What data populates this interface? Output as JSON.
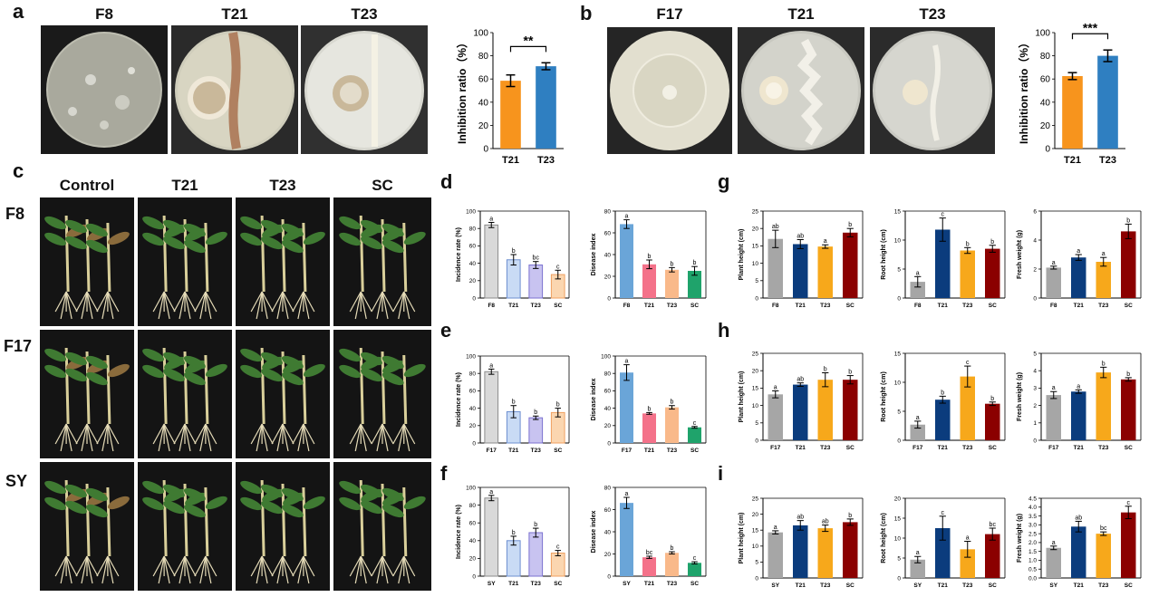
{
  "panels": {
    "a": {
      "letter": "a",
      "photo_labels": [
        "F8",
        "T21",
        "T23"
      ]
    },
    "b": {
      "letter": "b",
      "photo_labels": [
        "F17",
        "T21",
        "T23"
      ]
    },
    "c": {
      "letter": "c",
      "col_labels": [
        "Control",
        "T21",
        "T23",
        "SC"
      ],
      "row_labels": [
        "F8",
        "F17",
        "SY"
      ]
    },
    "d": {
      "letter": "d"
    },
    "e": {
      "letter": "e"
    },
    "f": {
      "letter": "f"
    },
    "g": {
      "letter": "g"
    },
    "h": {
      "letter": "h"
    },
    "i": {
      "letter": "i"
    }
  },
  "colors": {
    "orange": "#f7941d",
    "blue": "#2f7fc1",
    "gray": "#a6a6a6",
    "navy": "#0b3c7d",
    "amber": "#f7a81b",
    "maroon": "#8b0000",
    "pale_gray": "#d9d9d9",
    "pale_blue": "#c9dbf5",
    "pale_purple": "#c8c3f0",
    "pale_orange": "#fbd6b0",
    "di_blue": "#6aa5d8",
    "di_pink": "#f4728a",
    "di_peach": "#f9b98a",
    "di_green": "#1fa36b"
  },
  "chart_data": [
    {
      "id": "a",
      "type": "bar",
      "categories": [
        "T21",
        "T23"
      ],
      "values": [
        58.5,
        71.0
      ],
      "errors": [
        5,
        3
      ],
      "ylabel": "Inhibition ratio（%）",
      "ylim": [
        0,
        100
      ],
      "yticks": [
        0,
        20,
        40,
        60,
        80,
        100
      ],
      "significance": "**",
      "colors": [
        "#f7941d",
        "#2f7fc1"
      ]
    },
    {
      "id": "b",
      "type": "bar",
      "categories": [
        "T21",
        "T23"
      ],
      "values": [
        62.5,
        80.0
      ],
      "errors": [
        3,
        5
      ],
      "ylabel": "Inhibition ratio（%）",
      "ylim": [
        0,
        100
      ],
      "yticks": [
        0,
        20,
        40,
        60,
        80,
        100
      ],
      "significance": "***",
      "colors": [
        "#f7941d",
        "#2f7fc1"
      ]
    },
    {
      "id": "d1",
      "type": "bar",
      "categories": [
        "F8",
        "T21",
        "T23",
        "SC"
      ],
      "values": [
        84,
        44,
        38,
        27
      ],
      "errors": [
        3,
        6,
        4,
        5
      ],
      "letters": [
        "a",
        "b",
        "bc",
        "c"
      ],
      "ylabel": "Incidence rate (%)",
      "ylim": [
        0,
        100
      ],
      "yticks": [
        0,
        20,
        40,
        60,
        80,
        100
      ],
      "colors": [
        "#d9d9d9",
        "#c9dbf5",
        "#c8c3f0",
        "#fbd6b0"
      ],
      "edges": [
        "#8c8c8c",
        "#6d8fd0",
        "#7b72d0",
        "#f0a060"
      ]
    },
    {
      "id": "d2",
      "type": "bar",
      "categories": [
        "F8",
        "T21",
        "T23",
        "SC"
      ],
      "values": [
        68,
        31,
        26,
        25
      ],
      "errors": [
        4,
        4,
        2,
        4
      ],
      "letters": [
        "a",
        "b",
        "b",
        "b"
      ],
      "ylabel": "Disease index",
      "ylim": [
        0,
        80
      ],
      "yticks": [
        0,
        20,
        40,
        60,
        80
      ],
      "colors": [
        "#6aa5d8",
        "#f4728a",
        "#f9b98a",
        "#1fa36b"
      ]
    },
    {
      "id": "e1",
      "type": "bar",
      "categories": [
        "F17",
        "T21",
        "T23",
        "SC"
      ],
      "values": [
        82,
        36,
        29,
        35
      ],
      "errors": [
        3,
        7,
        2,
        5
      ],
      "letters": [
        "a",
        "b",
        "b",
        "b"
      ],
      "ylabel": "Incidence rate (%)",
      "ylim": [
        0,
        100
      ],
      "yticks": [
        0,
        20,
        40,
        60,
        80,
        100
      ],
      "colors": [
        "#d9d9d9",
        "#c9dbf5",
        "#c8c3f0",
        "#fbd6b0"
      ],
      "edges": [
        "#8c8c8c",
        "#6d8fd0",
        "#7b72d0",
        "#f0a060"
      ]
    },
    {
      "id": "e2",
      "type": "bar",
      "categories": [
        "F17",
        "T21",
        "T23",
        "SC"
      ],
      "values": [
        81,
        34,
        41,
        18
      ],
      "errors": [
        9,
        1,
        2,
        1
      ],
      "letters": [
        "a",
        "b",
        "b",
        "c"
      ],
      "ylabel": "Disease index",
      "ylim": [
        0,
        100
      ],
      "yticks": [
        0,
        20,
        40,
        60,
        80,
        100
      ],
      "colors": [
        "#6aa5d8",
        "#f4728a",
        "#f9b98a",
        "#1fa36b"
      ]
    },
    {
      "id": "f1",
      "type": "bar",
      "categories": [
        "SY",
        "T21",
        "T23",
        "SC"
      ],
      "values": [
        88,
        40,
        49,
        26
      ],
      "errors": [
        3,
        5,
        5,
        3
      ],
      "letters": [
        "a",
        "b",
        "b",
        "c"
      ],
      "ylabel": "Incidence rate (%)",
      "ylim": [
        0,
        100
      ],
      "yticks": [
        0,
        20,
        40,
        60,
        80,
        100
      ],
      "colors": [
        "#d9d9d9",
        "#c9dbf5",
        "#c8c3f0",
        "#fbd6b0"
      ],
      "edges": [
        "#8c8c8c",
        "#6d8fd0",
        "#7b72d0",
        "#f0a060"
      ]
    },
    {
      "id": "f2",
      "type": "bar",
      "categories": [
        "SY",
        "T21",
        "T23",
        "SC"
      ],
      "values": [
        66,
        17,
        21,
        12
      ],
      "errors": [
        5,
        1,
        1,
        1
      ],
      "letters": [
        "a",
        "bc",
        "b",
        "c"
      ],
      "ylabel": "Disease index",
      "ylim": [
        0,
        80
      ],
      "yticks": [
        0,
        20,
        40,
        60,
        80
      ],
      "colors": [
        "#6aa5d8",
        "#f4728a",
        "#f9b98a",
        "#1fa36b"
      ]
    },
    {
      "id": "g1",
      "type": "bar",
      "categories": [
        "F8",
        "T21",
        "T23",
        "SC"
      ],
      "values": [
        17,
        15.5,
        14.8,
        18.8
      ],
      "errors": [
        2.5,
        1.3,
        0.5,
        1.2
      ],
      "letters": [
        "ab",
        "ab",
        "a",
        "b"
      ],
      "ylabel": "Plant height (cm)",
      "ylim": [
        0,
        25
      ],
      "yticks": [
        0,
        5,
        10,
        15,
        20,
        25
      ],
      "colors": [
        "#a6a6a6",
        "#0b3c7d",
        "#f7a81b",
        "#8b0000"
      ]
    },
    {
      "id": "g2",
      "type": "bar",
      "categories": [
        "F8",
        "T21",
        "T23",
        "SC"
      ],
      "values": [
        2.8,
        11.8,
        8.2,
        8.5
      ],
      "errors": [
        0.9,
        2.0,
        0.5,
        0.6
      ],
      "letters": [
        "a",
        "c",
        "b",
        "b"
      ],
      "ylabel": "Root height (cm)",
      "ylim": [
        0,
        15
      ],
      "yticks": [
        0,
        5,
        10,
        15
      ],
      "colors": [
        "#a6a6a6",
        "#0b3c7d",
        "#f7a81b",
        "#8b0000"
      ]
    },
    {
      "id": "g3",
      "type": "bar",
      "categories": [
        "F8",
        "T21",
        "T23",
        "SC"
      ],
      "values": [
        2.1,
        2.8,
        2.5,
        4.6
      ],
      "errors": [
        0.1,
        0.2,
        0.3,
        0.5
      ],
      "letters": [
        "a",
        "a",
        "a",
        "b"
      ],
      "ylabel": "Fresh weight (g)",
      "ylim": [
        0,
        6
      ],
      "yticks": [
        0,
        2,
        4,
        6
      ],
      "colors": [
        "#a6a6a6",
        "#0b3c7d",
        "#f7a81b",
        "#8b0000"
      ]
    },
    {
      "id": "h1",
      "type": "bar",
      "categories": [
        "F17",
        "T21",
        "T23",
        "SC"
      ],
      "values": [
        13.2,
        16,
        17.4,
        17.4
      ],
      "errors": [
        1,
        0.5,
        2,
        1.2
      ],
      "letters": [
        "a",
        "ab",
        "b",
        "b"
      ],
      "ylabel": "Plant height (cm)",
      "ylim": [
        0,
        25
      ],
      "yticks": [
        0,
        5,
        10,
        15,
        20,
        25
      ],
      "colors": [
        "#a6a6a6",
        "#0b3c7d",
        "#f7a81b",
        "#8b0000"
      ]
    },
    {
      "id": "h2",
      "type": "bar",
      "categories": [
        "F17",
        "T21",
        "T23",
        "SC"
      ],
      "values": [
        2.7,
        7,
        11,
        6.3
      ],
      "errors": [
        0.6,
        0.6,
        1.8,
        0.3
      ],
      "letters": [
        "a",
        "b",
        "c",
        "b"
      ],
      "ylabel": "Root height (cm)",
      "ylim": [
        0,
        15
      ],
      "yticks": [
        0,
        5,
        10,
        15
      ],
      "colors": [
        "#a6a6a6",
        "#0b3c7d",
        "#f7a81b",
        "#8b0000"
      ]
    },
    {
      "id": "h3",
      "type": "bar",
      "categories": [
        "F17",
        "T21",
        "T23",
        "SC"
      ],
      "values": [
        2.6,
        2.8,
        3.9,
        3.5
      ],
      "errors": [
        0.2,
        0.1,
        0.3,
        0.1
      ],
      "letters": [
        "a",
        "a",
        "b",
        "b"
      ],
      "ylabel": "Fresh weight (g)",
      "ylim": [
        0,
        5
      ],
      "yticks": [
        0,
        1,
        2,
        3,
        4,
        5
      ],
      "colors": [
        "#a6a6a6",
        "#0b3c7d",
        "#f7a81b",
        "#8b0000"
      ]
    },
    {
      "id": "i1",
      "type": "bar",
      "categories": [
        "SY",
        "T21",
        "T23",
        "SC"
      ],
      "values": [
        14.3,
        16.5,
        15.6,
        17.5
      ],
      "errors": [
        0.5,
        1.5,
        1,
        1
      ],
      "letters": [
        "a",
        "ab",
        "ab",
        "b"
      ],
      "ylabel": "Plant height (cm)",
      "ylim": [
        0,
        25
      ],
      "yticks": [
        0,
        5,
        10,
        15,
        20,
        25
      ],
      "colors": [
        "#a6a6a6",
        "#0b3c7d",
        "#f7a81b",
        "#8b0000"
      ]
    },
    {
      "id": "i2",
      "type": "bar",
      "categories": [
        "SY",
        "T21",
        "T23",
        "SC"
      ],
      "values": [
        4.6,
        12.5,
        7.2,
        11
      ],
      "errors": [
        0.8,
        3,
        2,
        1.5
      ],
      "letters": [
        "a",
        "c",
        "a",
        "bc"
      ],
      "ylabel": "Root height (cm)",
      "ylim": [
        0,
        20
      ],
      "yticks": [
        0,
        5,
        10,
        15,
        20
      ],
      "colors": [
        "#a6a6a6",
        "#0b3c7d",
        "#f7a81b",
        "#8b0000"
      ]
    },
    {
      "id": "i3",
      "type": "bar",
      "categories": [
        "SY",
        "T21",
        "T23",
        "SC"
      ],
      "values": [
        1.7,
        2.9,
        2.5,
        3.7
      ],
      "errors": [
        0.1,
        0.3,
        0.1,
        0.35
      ],
      "letters": [
        "a",
        "ab",
        "bc",
        "c"
      ],
      "ylabel": "Fresh weight (g)",
      "ylim": [
        0,
        4.5
      ],
      "yticks": [
        0,
        0.5,
        1,
        1.5,
        2,
        2.5,
        3,
        3.5,
        4,
        4.5
      ],
      "tickLabels": [
        "0.0",
        "0.5",
        "1.0",
        "1.5",
        "2.0",
        "2.5",
        "3.0",
        "3.5",
        "4.0",
        "4.5"
      ],
      "colors": [
        "#a6a6a6",
        "#0b3c7d",
        "#f7a81b",
        "#8b0000"
      ]
    }
  ]
}
